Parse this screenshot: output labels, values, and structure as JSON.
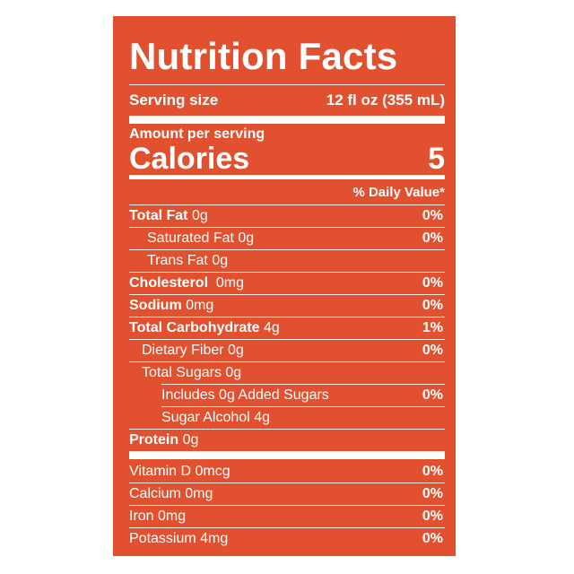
{
  "label": {
    "title": "Nutrition Facts",
    "serving_size_label": "Serving size",
    "serving_size_value": "12 fl oz (355 mL)",
    "amount_per_serving": "Amount per serving",
    "calories_label": "Calories",
    "calories_value": "5",
    "daily_value_header": "% Daily Value*",
    "nutrients": [
      {
        "name": "Total Fat",
        "amount": "0g",
        "dv": "0%"
      },
      {
        "name": "Saturated Fat",
        "amount": "0g",
        "dv": "0%"
      },
      {
        "name": "Trans Fat",
        "amount": "0g",
        "dv": ""
      },
      {
        "name": "Cholesterol",
        "amount": "0mg",
        "dv": "0%"
      },
      {
        "name": "Sodium",
        "amount": "0mg",
        "dv": "0%"
      },
      {
        "name": "Total Carbohydrate",
        "amount": "4g",
        "dv": "1%"
      },
      {
        "name": "Dietary Fiber",
        "amount": "0g",
        "dv": "0%"
      },
      {
        "name": "Total Sugars",
        "amount": "0g",
        "dv": ""
      },
      {
        "name": "Includes 0g Added Sugars",
        "amount": "",
        "dv": "0%"
      },
      {
        "name": "Sugar Alcohol",
        "amount": "4g",
        "dv": ""
      },
      {
        "name": "Protein",
        "amount": "0g",
        "dv": ""
      }
    ],
    "vitamins": [
      {
        "name": "Vitamin D",
        "amount": "0mcg",
        "dv": "0%"
      },
      {
        "name": "Calcium",
        "amount": "0mg",
        "dv": "0%"
      },
      {
        "name": "Iron",
        "amount": "0mg",
        "dv": "0%"
      },
      {
        "name": "Potassium",
        "amount": "4mg",
        "dv": "0%"
      }
    ]
  },
  "colors": {
    "label_background": "#e2512f",
    "text": "#ffffff"
  }
}
